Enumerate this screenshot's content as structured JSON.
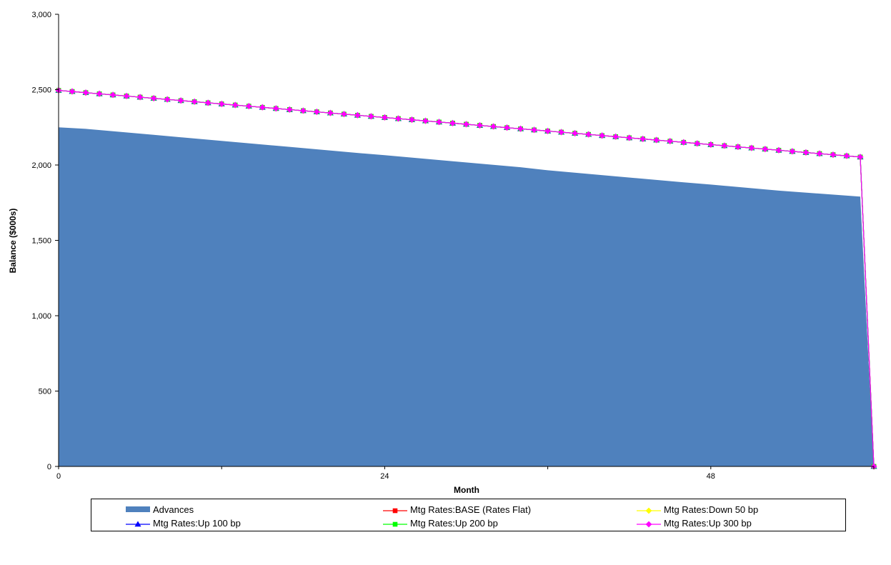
{
  "chart_data": {
    "type": "area",
    "xlabel": "Month",
    "ylabel": "Balance ($000s)",
    "xlim": [
      0,
      60
    ],
    "ylim": [
      0,
      3000
    ],
    "x_ticks": [
      0,
      24,
      48
    ],
    "x_tick_labels": [
      "0",
      "24",
      "48"
    ],
    "y_ticks": [
      0,
      500,
      1000,
      1500,
      2000,
      2500,
      3000
    ],
    "y_tick_labels": [
      "0",
      "500",
      "1,000",
      "1,500",
      "2,000",
      "2,500",
      "3,000"
    ],
    "grid": false,
    "legend_position": "bottom",
    "area_series": {
      "name": "Advances",
      "color": "#4f81bd",
      "x": [
        0,
        2,
        7,
        12,
        17,
        22,
        24,
        29,
        34,
        36,
        41,
        46,
        48,
        53,
        59,
        60
      ],
      "values": [
        2250,
        2240,
        2200,
        2160,
        2120,
        2080,
        2065,
        2025,
        1985,
        1965,
        1925,
        1885,
        1870,
        1830,
        1790,
        0
      ]
    },
    "series": [
      {
        "name": "Mtg Rates:BASE (Rates Flat)",
        "color": "#ff0000",
        "marker": "square",
        "start": 2495,
        "end": 2053,
        "last_month": 59,
        "final_value": 0
      },
      {
        "name": "Mtg Rates:Down 50 bp",
        "color": "#ffff00",
        "marker": "diamond",
        "start": 2495,
        "end": 2053,
        "last_month": 59,
        "final_value": 0
      },
      {
        "name": "Mtg Rates:Up 100 bp",
        "color": "#0000ff",
        "marker": "triangle",
        "start": 2495,
        "end": 2053,
        "last_month": 59,
        "final_value": 0
      },
      {
        "name": "Mtg Rates:Up 200 bp",
        "color": "#00ff00",
        "marker": "square",
        "start": 2495,
        "end": 2053,
        "last_month": 59,
        "final_value": 0
      },
      {
        "name": "Mtg Rates:Up 300 bp",
        "color": "#ff00ff",
        "marker": "diamond",
        "start": 2495,
        "end": 2053,
        "last_month": 59,
        "final_value": 0
      }
    ]
  }
}
